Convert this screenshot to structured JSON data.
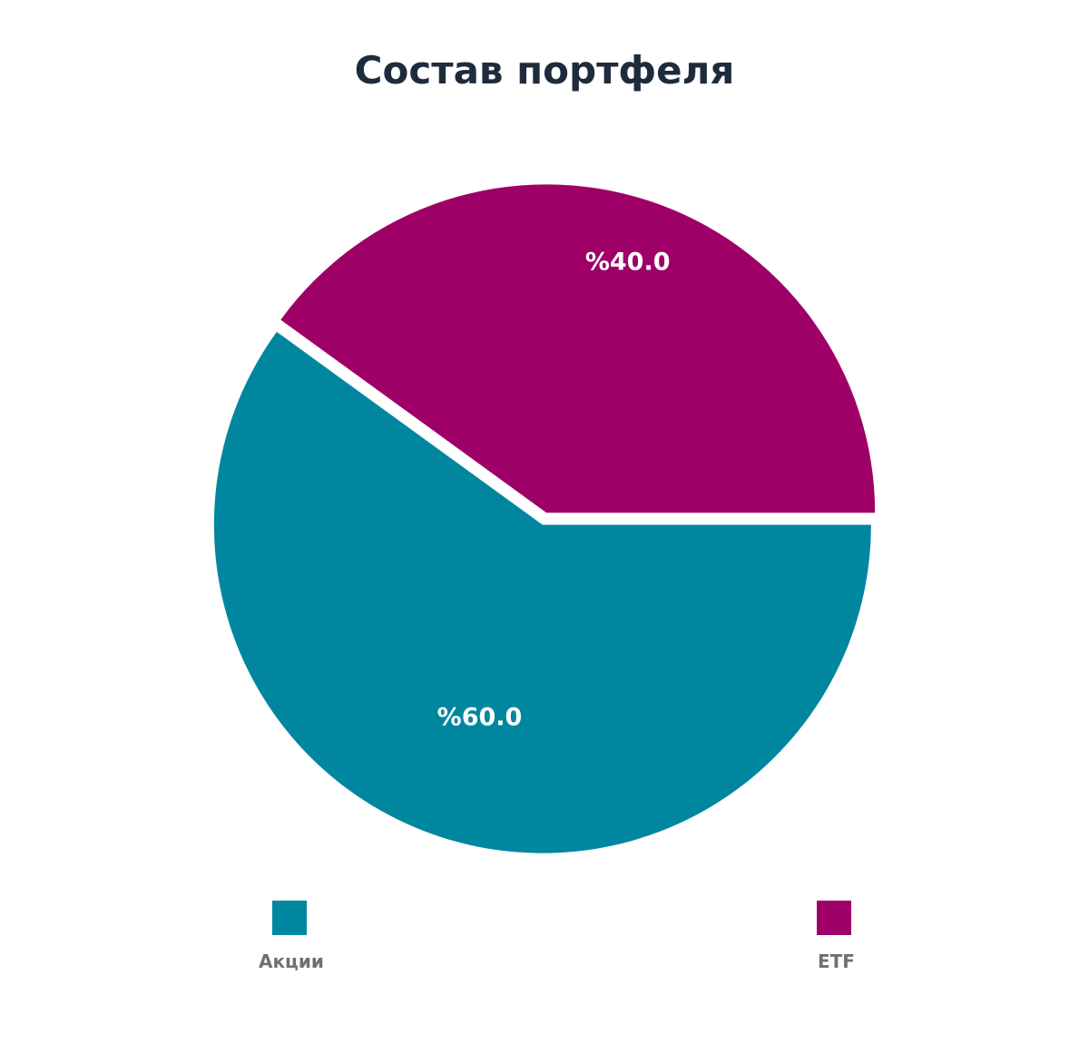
{
  "chart_data": {
    "type": "pie",
    "title": "Состав портфеля",
    "slices": [
      {
        "name": "Акции",
        "value": 60.0,
        "label": "%60.0",
        "color": "#00879f"
      },
      {
        "name": "ETF",
        "value": 40.0,
        "label": "%40.0",
        "color": "#9e0068"
      }
    ],
    "legend_placement": "bottom"
  }
}
